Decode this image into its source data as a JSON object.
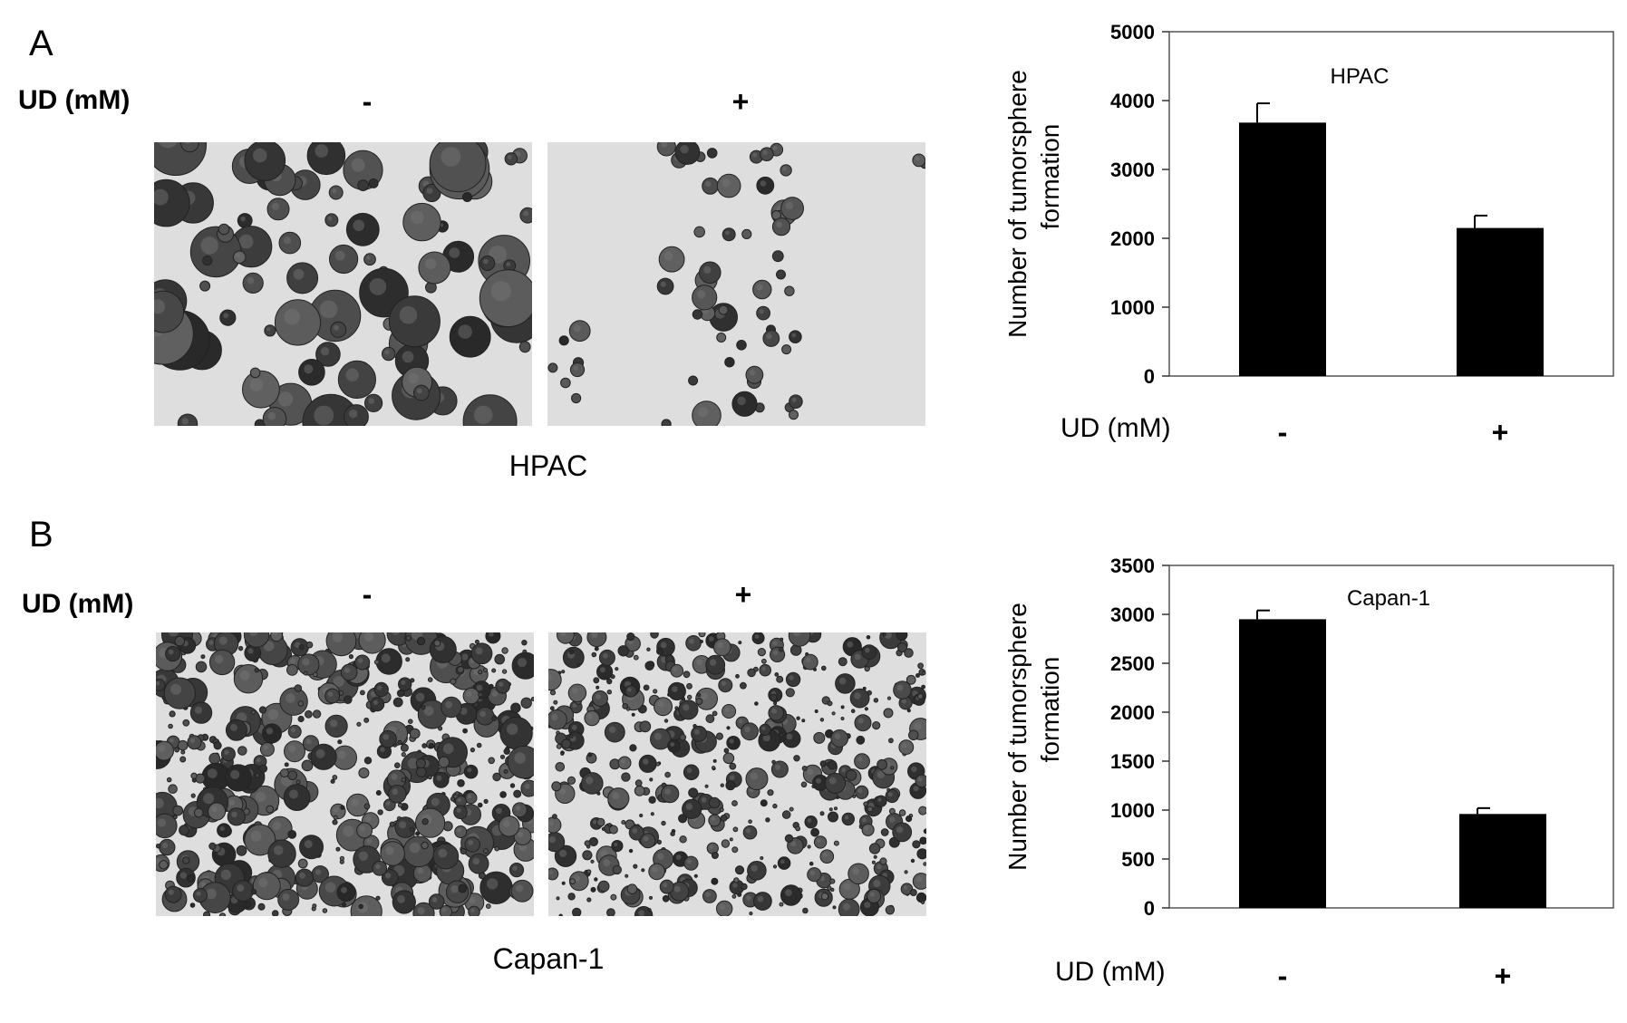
{
  "panels": [
    {
      "letter": "A",
      "ud_label": "UD (mM)",
      "minus": "-",
      "plus": "+",
      "caption": "HPAC"
    },
    {
      "letter": "B",
      "ud_label": "UD (mM)",
      "minus": "-",
      "plus": "+",
      "caption": "Capan-1"
    }
  ],
  "chart_data": [
    {
      "type": "bar",
      "categories": [
        "-",
        "+"
      ],
      "category_axis_label": "UD (mM)",
      "values": [
        3680,
        2150
      ],
      "error": [
        280,
        180
      ],
      "ylabel_line1": "Number of  tumorsphere",
      "ylabel_line2": "formation",
      "ylim": [
        0,
        5000
      ],
      "yticks": [
        0,
        1000,
        2000,
        3000,
        4000,
        5000
      ],
      "annotation": "HPAC",
      "bar_color": "#000000",
      "grid": false
    },
    {
      "type": "bar",
      "categories": [
        "-",
        "+"
      ],
      "category_axis_label": "UD (mM)",
      "values": [
        2950,
        960
      ],
      "error": [
        90,
        60
      ],
      "ylabel_line1": "Number of  tumorsphere",
      "ylabel_line2": "formation",
      "ylim": [
        0,
        3500
      ],
      "yticks": [
        0,
        500,
        1000,
        1500,
        2000,
        2500,
        3000,
        3500
      ],
      "annotation": "Capan-1",
      "bar_color": "#000000",
      "grid": false
    }
  ]
}
